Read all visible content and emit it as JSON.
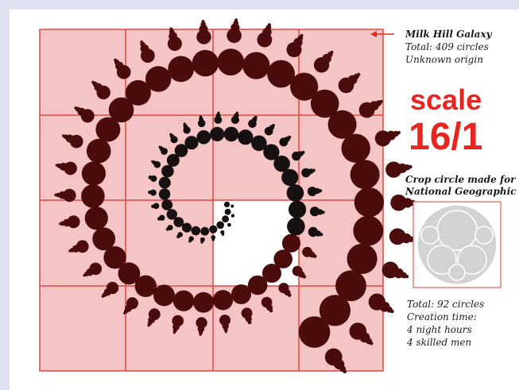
{
  "main": {
    "title": "Milk Hill Galaxy",
    "total": "Total: 409 circles",
    "origin": "Unknown origin"
  },
  "scale": {
    "label": "scale",
    "ratio": "16/1"
  },
  "comparison": {
    "caption": [
      "Crop circle made for",
      "National Geographic"
    ],
    "details": [
      "Total: 92 circles",
      "Creation time:",
      "4 night hours",
      "4 skilled men"
    ]
  }
}
